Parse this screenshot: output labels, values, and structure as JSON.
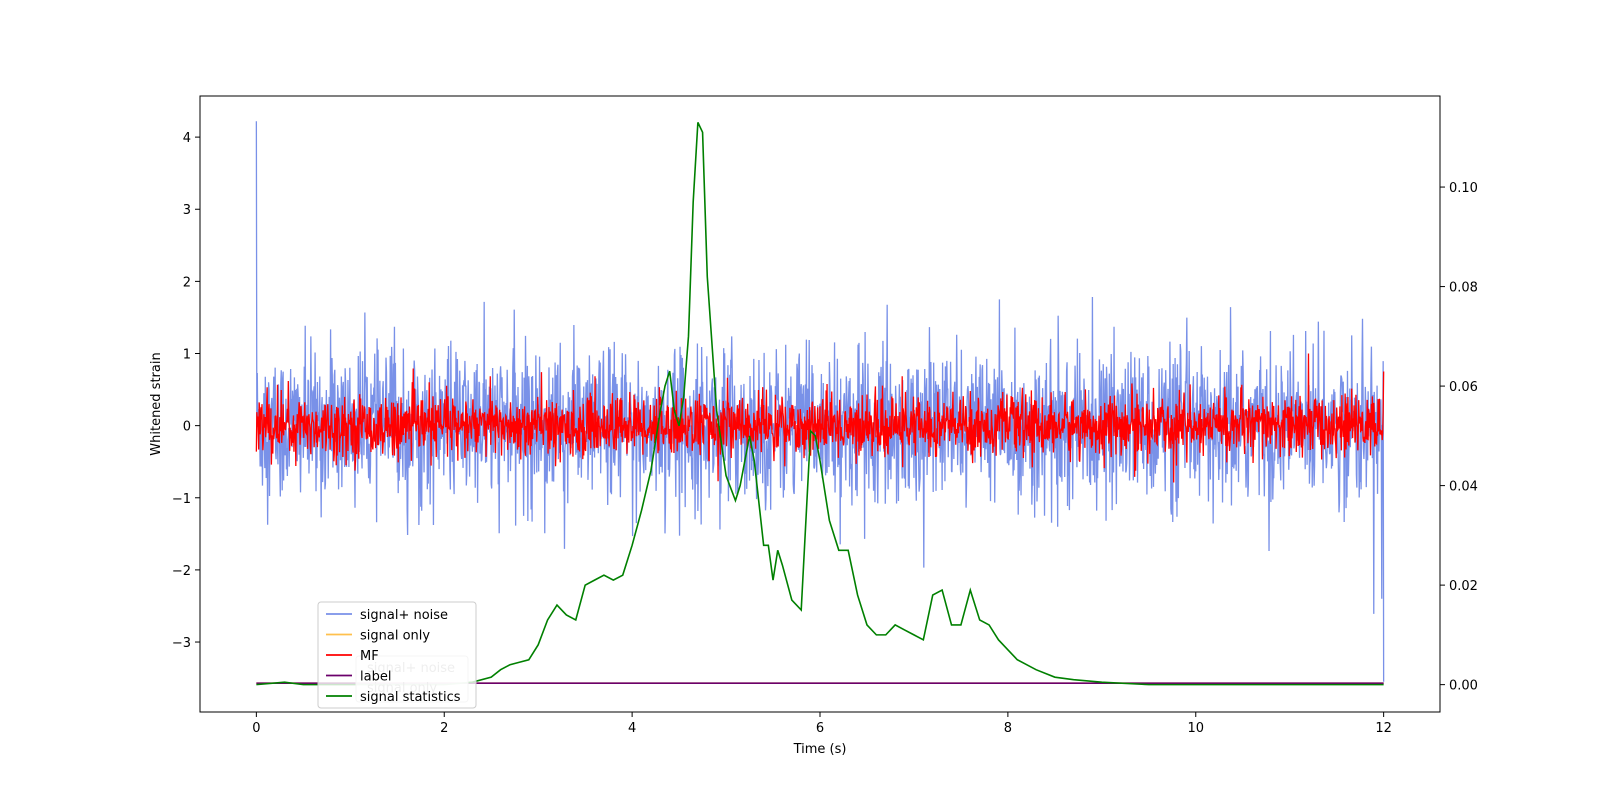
{
  "chart_data": {
    "type": "line",
    "xlabel": "Time (s)",
    "ylabel": "Whitened strain",
    "xlim": [
      -0.6,
      12.6
    ],
    "ylim": [
      -3.97,
      4.57
    ],
    "y2lim": [
      -0.0055,
      0.1183
    ],
    "x_ticks": [
      0,
      2,
      4,
      6,
      8,
      10,
      12
    ],
    "y_ticks": [
      -3,
      -2,
      -1,
      0,
      1,
      2,
      3,
      4
    ],
    "y2_ticks": [
      0.0,
      0.02,
      0.04,
      0.06,
      0.08,
      0.1
    ],
    "legend_position": "lower-left",
    "series": [
      {
        "name": "signal+ noise",
        "color": "#7991e8",
        "axis": "left",
        "kind": "noise",
        "x_range": [
          0,
          12
        ],
        "center": 0.0,
        "band": [
          -1.1,
          1.1
        ],
        "extremes": [
          {
            "x": 0.0,
            "y": 4.22
          },
          {
            "x": 12.0,
            "y": -3.55
          },
          {
            "x": 11.98,
            "y": -2.4
          }
        ]
      },
      {
        "name": "signal only",
        "color": "#ffc04d",
        "axis": "left",
        "kind": "line",
        "x": [
          0,
          12
        ],
        "y": [
          -3.57,
          -3.57
        ]
      },
      {
        "name": "MF",
        "color": "#ff0000",
        "axis": "left",
        "kind": "noise",
        "x_range": [
          0,
          12
        ],
        "center": 0.0,
        "band": [
          -0.32,
          0.55
        ],
        "extremes": [
          {
            "x": 11.2,
            "y": 1.0
          },
          {
            "x": 12.0,
            "y": 0.75
          }
        ]
      },
      {
        "name": "label",
        "color": "#6b006b",
        "axis": "left",
        "kind": "line",
        "x": [
          0,
          12
        ],
        "y": [
          -3.57,
          -3.57
        ]
      },
      {
        "name": "signal statistics",
        "color": "#008000",
        "axis": "right",
        "kind": "line",
        "x": [
          0,
          0.3,
          0.5,
          1.0,
          1.5,
          2.0,
          2.3,
          2.5,
          2.6,
          2.7,
          2.8,
          2.9,
          3.0,
          3.1,
          3.2,
          3.3,
          3.4,
          3.5,
          3.6,
          3.7,
          3.8,
          3.9,
          4.0,
          4.1,
          4.2,
          4.3,
          4.35,
          4.4,
          4.45,
          4.5,
          4.55,
          4.6,
          4.65,
          4.7,
          4.75,
          4.8,
          4.9,
          5.0,
          5.1,
          5.15,
          5.2,
          5.25,
          5.3,
          5.4,
          5.45,
          5.5,
          5.55,
          5.6,
          5.7,
          5.8,
          5.9,
          5.95,
          6.0,
          6.1,
          6.2,
          6.3,
          6.4,
          6.5,
          6.6,
          6.7,
          6.8,
          6.9,
          7.0,
          7.1,
          7.2,
          7.3,
          7.4,
          7.5,
          7.6,
          7.7,
          7.8,
          7.9,
          8.0,
          8.1,
          8.2,
          8.3,
          8.5,
          8.7,
          9.0,
          9.5,
          10.0,
          11.0,
          12.0
        ],
        "y": [
          0.0,
          0.0005,
          0.0,
          0.0,
          0.0,
          0.0,
          0.0005,
          0.0015,
          0.003,
          0.004,
          0.0045,
          0.005,
          0.008,
          0.013,
          0.016,
          0.014,
          0.013,
          0.02,
          0.021,
          0.022,
          0.021,
          0.022,
          0.028,
          0.035,
          0.043,
          0.055,
          0.06,
          0.063,
          0.055,
          0.052,
          0.058,
          0.07,
          0.097,
          0.113,
          0.111,
          0.082,
          0.055,
          0.042,
          0.037,
          0.04,
          0.045,
          0.05,
          0.045,
          0.028,
          0.028,
          0.021,
          0.027,
          0.024,
          0.017,
          0.015,
          0.051,
          0.05,
          0.045,
          0.033,
          0.027,
          0.027,
          0.018,
          0.012,
          0.01,
          0.01,
          0.012,
          0.011,
          0.01,
          0.009,
          0.018,
          0.019,
          0.012,
          0.012,
          0.019,
          0.013,
          0.012,
          0.009,
          0.007,
          0.005,
          0.004,
          0.003,
          0.0015,
          0.001,
          0.0005,
          0.0,
          0.0,
          0.0,
          0.0
        ]
      }
    ],
    "legend_ghost_entries": [
      "signal+ noise",
      "signal only"
    ]
  },
  "colors": {
    "axes": "#000000",
    "background": "#ffffff"
  }
}
